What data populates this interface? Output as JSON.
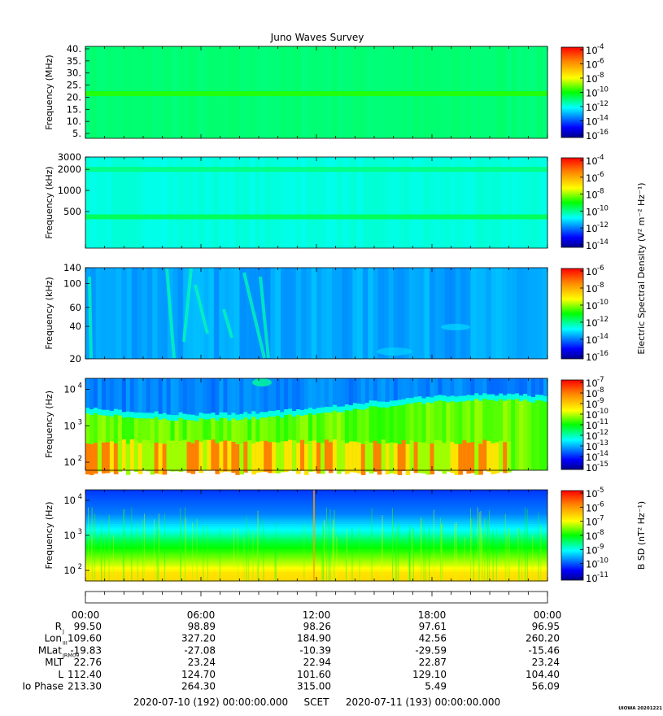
{
  "title": "Juno Waves Survey",
  "colors": {
    "jet": [
      "#00008f",
      "#0000ff",
      "#0080ff",
      "#00ffff",
      "#00ff80",
      "#00ff00",
      "#80ff00",
      "#ffff00",
      "#ff8000",
      "#ff0000"
    ]
  },
  "chart_data": [
    {
      "type": "heatmap",
      "ylabel": "Frequency (MHz)",
      "yticks": [
        "40.",
        "35.",
        "30.",
        "25.",
        "20.",
        "15.",
        "10.",
        "5."
      ],
      "ytick_values": [
        40,
        35,
        30,
        25,
        20,
        15,
        10,
        5
      ],
      "ylim": [
        3,
        41
      ],
      "yscale": "linear",
      "colorbar_ticks": [
        "-4",
        "-6",
        "-8",
        "-10",
        "-12",
        "-14",
        "-16"
      ],
      "colorbar_range": [
        -17,
        -4
      ],
      "base_level": -11.5,
      "bands": [
        {
          "y": 21.5,
          "level": -10.2
        }
      ]
    },
    {
      "type": "heatmap",
      "ylabel": "Frequency (kHz)",
      "yticks": [
        "3000",
        "2000",
        "1000",
        "500"
      ],
      "ytick_values": [
        3000,
        2000,
        1000,
        500
      ],
      "ylim": [
        150,
        3000
      ],
      "yscale": "log",
      "colorbar_ticks": [
        "-4",
        "-6",
        "-8",
        "-10",
        "-12",
        "-14"
      ],
      "colorbar_range": [
        -15,
        -3
      ],
      "colorbar_label": "Electric Spectral Density (V² m⁻² Hz⁻¹)",
      "base_level": -10.8,
      "bands": [
        {
          "y": 2000,
          "level": -10.0
        },
        {
          "y": 420,
          "level": -9.6
        }
      ]
    },
    {
      "type": "heatmap",
      "ylabel": "Frequency (kHz)",
      "yticks": [
        "140",
        "100",
        "60",
        "40",
        "20"
      ],
      "ytick_values": [
        140,
        100,
        60,
        40,
        20
      ],
      "ylim": [
        20,
        140
      ],
      "yscale": "log",
      "colorbar_ticks": [
        "-6",
        "-8",
        "-10",
        "-12",
        "-14",
        "-16"
      ],
      "colorbar_range": [
        -17,
        -6
      ],
      "base_level": -14.2
    },
    {
      "type": "heatmap",
      "ylabel": "Frequency (Hz)",
      "yticks": [
        "10",
        "10",
        "10"
      ],
      "ytick_exp": [
        "4",
        "3",
        "2"
      ],
      "ytick_values": [
        10000,
        1000,
        100
      ],
      "ylim": [
        60,
        20000
      ],
      "yscale": "log",
      "colorbar_ticks": [
        "-7",
        "-8",
        "-9",
        "-10",
        "-11",
        "-12",
        "-13",
        "-14",
        "-15"
      ],
      "colorbar_range": [
        -15,
        -7
      ],
      "base_level": -13.0
    },
    {
      "type": "heatmap",
      "ylabel": "Frequency (Hz)",
      "yticks": [
        "10",
        "10",
        "10"
      ],
      "ytick_exp": [
        "4",
        "3",
        "2"
      ],
      "ytick_values": [
        10000,
        1000,
        100
      ],
      "ylim": [
        50,
        20000
      ],
      "yscale": "log",
      "colorbar_ticks": [
        "-5",
        "-6",
        "-7",
        "-8",
        "-9",
        "-10",
        "-11"
      ],
      "colorbar_range": [
        -11,
        -4.5
      ],
      "colorbar_label": "B SD (nT² Hz⁻¹)",
      "base_level": -9.5
    }
  ],
  "time_axis": {
    "labels": [
      "00:00",
      "06:00",
      "12:00",
      "18:00",
      "00:00"
    ],
    "hours": [
      0,
      6,
      12,
      18,
      24
    ]
  },
  "ephemeris": {
    "rows": [
      {
        "label": "R",
        "sub": "J",
        "values": [
          "99.50",
          "98.89",
          "98.26",
          "97.61",
          "96.95"
        ]
      },
      {
        "label": "Lon",
        "sub": "III",
        "values": [
          "109.60",
          "327.20",
          "184.90",
          "42.56",
          "260.20"
        ]
      },
      {
        "label": "MLat",
        "sub": "JRM09",
        "values": [
          "-19.83",
          "-27.08",
          "-10.39",
          "-29.59",
          "-15.46"
        ]
      },
      {
        "label": "MLT",
        "sub": "",
        "values": [
          "22.76",
          "23.24",
          "22.94",
          "22.87",
          "23.24"
        ]
      },
      {
        "label": "L",
        "sub": "",
        "values": [
          "112.40",
          "124.70",
          "101.60",
          "129.10",
          "104.40"
        ]
      },
      {
        "label": "Io Phase",
        "sub": "",
        "values": [
          "213.30",
          "264.30",
          "315.00",
          "5.49",
          "56.09"
        ]
      }
    ]
  },
  "footer": {
    "start": "2020-07-10 (192) 00:00:00.000",
    "scet": "SCET",
    "end": "2020-07-11 (193) 00:00:00.000",
    "stamp": "UIOWA 20201221"
  }
}
